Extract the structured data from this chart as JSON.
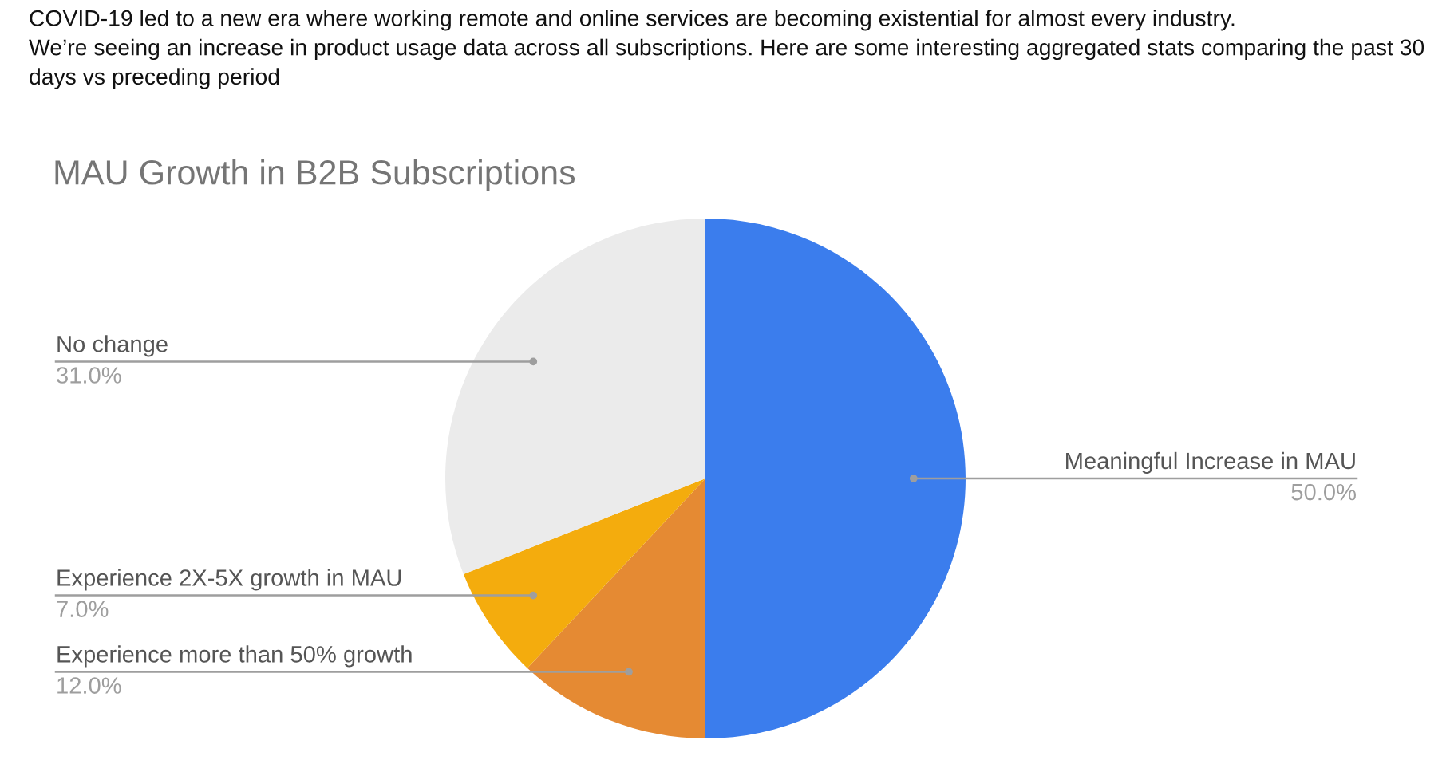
{
  "chart_data": {
    "type": "pie",
    "title": "MAU Growth in B2B Subscriptions",
    "annotations": [
      "COVID-19 led to a new era where working remote and online services are becoming existential for almost every industry.\nWe’re seeing an increase in product usage data across all subscriptions. Here are some interesting aggregated stats comparing the past 30\ndays vs preceding period"
    ],
    "categories": [
      "Meaningful Increase in MAU",
      "Experience more than 50% growth",
      "Experience 2X-5X growth in MAU",
      "No change"
    ],
    "values": [
      50,
      12,
      7,
      31
    ],
    "value_labels": [
      "50.0%",
      "12.0%",
      "7.0%",
      "31.0%"
    ],
    "colors": [
      "#3b7ded",
      "#e58a33",
      "#f4ac0d",
      "#ebebeb"
    ],
    "legend": false
  }
}
